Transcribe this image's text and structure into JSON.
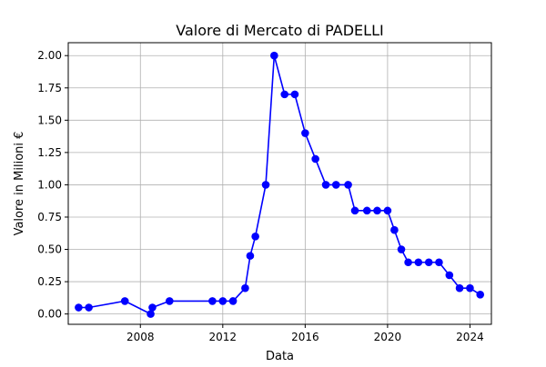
{
  "chart_data": {
    "type": "line",
    "title": "Valore di Mercato di PADELLI",
    "xlabel": "Data",
    "ylabel": "Valore in Milioni €",
    "x_axis_type": "date",
    "xlim": [
      "2004-07-01",
      "2025-01-15"
    ],
    "ylim": [
      -0.08,
      2.1
    ],
    "x_ticks": [
      "2008-01-01",
      "2012-01-01",
      "2016-01-01",
      "2020-01-01",
      "2024-01-01"
    ],
    "x_tick_labels": [
      "2008",
      "2012",
      "2016",
      "2020",
      "2024"
    ],
    "y_ticks": [
      0,
      0.25,
      0.5,
      0.75,
      1.0,
      1.25,
      1.5,
      1.75,
      2.0
    ],
    "y_tick_labels": [
      "0.00",
      "0.25",
      "0.50",
      "0.75",
      "1.00",
      "1.25",
      "1.50",
      "1.75",
      "2.00"
    ],
    "grid": true,
    "series": [
      {
        "color": "#0000ff",
        "marker": "circle",
        "points": [
          {
            "x": "2005-01-01",
            "y": 0.05
          },
          {
            "x": "2005-07-01",
            "y": 0.05
          },
          {
            "x": "2007-04-01",
            "y": 0.1
          },
          {
            "x": "2008-07-01",
            "y": 0.0
          },
          {
            "x": "2008-08-01",
            "y": 0.05
          },
          {
            "x": "2009-06-01",
            "y": 0.1
          },
          {
            "x": "2011-07-01",
            "y": 0.1
          },
          {
            "x": "2012-01-01",
            "y": 0.1
          },
          {
            "x": "2012-07-01",
            "y": 0.1
          },
          {
            "x": "2013-02-01",
            "y": 0.2
          },
          {
            "x": "2013-05-01",
            "y": 0.45
          },
          {
            "x": "2013-08-01",
            "y": 0.6
          },
          {
            "x": "2014-02-01",
            "y": 1.0
          },
          {
            "x": "2014-07-01",
            "y": 2.0
          },
          {
            "x": "2015-01-01",
            "y": 1.7
          },
          {
            "x": "2015-07-01",
            "y": 1.7
          },
          {
            "x": "2016-01-01",
            "y": 1.4
          },
          {
            "x": "2016-07-01",
            "y": 1.2
          },
          {
            "x": "2017-01-01",
            "y": 1.0
          },
          {
            "x": "2017-07-01",
            "y": 1.0
          },
          {
            "x": "2018-02-01",
            "y": 1.0
          },
          {
            "x": "2018-06-01",
            "y": 0.8
          },
          {
            "x": "2019-01-01",
            "y": 0.8
          },
          {
            "x": "2019-07-01",
            "y": 0.8
          },
          {
            "x": "2020-01-01",
            "y": 0.8
          },
          {
            "x": "2020-05-01",
            "y": 0.65
          },
          {
            "x": "2020-09-01",
            "y": 0.5
          },
          {
            "x": "2021-01-01",
            "y": 0.4
          },
          {
            "x": "2021-07-01",
            "y": 0.4
          },
          {
            "x": "2022-01-01",
            "y": 0.4
          },
          {
            "x": "2022-07-01",
            "y": 0.4
          },
          {
            "x": "2023-01-01",
            "y": 0.3
          },
          {
            "x": "2023-07-01",
            "y": 0.2
          },
          {
            "x": "2024-01-01",
            "y": 0.2
          },
          {
            "x": "2024-07-01",
            "y": 0.15
          }
        ]
      }
    ]
  }
}
